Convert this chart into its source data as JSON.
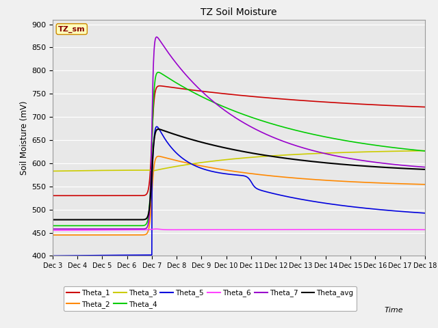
{
  "title": "TZ Soil Moisture",
  "ylabel": "Soil Moisture (mV)",
  "ylim": [
    400,
    910
  ],
  "yticks": [
    400,
    450,
    500,
    550,
    600,
    650,
    700,
    750,
    800,
    850,
    900
  ],
  "box_label": "TZ_sm",
  "background_color": "#e8e8e8",
  "fig_facecolor": "#f0f0f0",
  "series": {
    "Theta_1": {
      "color": "#cc0000",
      "lw": 1.2
    },
    "Theta_2": {
      "color": "#ff8800",
      "lw": 1.2
    },
    "Theta_3": {
      "color": "#cccc00",
      "lw": 1.2
    },
    "Theta_4": {
      "color": "#00cc00",
      "lw": 1.2
    },
    "Theta_5": {
      "color": "#0000dd",
      "lw": 1.2
    },
    "Theta_6": {
      "color": "#ff44ff",
      "lw": 1.2
    },
    "Theta_7": {
      "color": "#9900cc",
      "lw": 1.2
    },
    "Theta_avg": {
      "color": "#000000",
      "lw": 1.5
    }
  },
  "x_tick_labels": [
    "Dec 3",
    "Dec 4",
    "Dec 5",
    "Dec 6",
    "Dec 7",
    "Dec 8",
    "Dec 9",
    "Dec 10",
    "Dec 11",
    "Dec 12",
    "Dec 13",
    "Dec 14",
    "Dec 15",
    "Dec 16",
    "Dec 17",
    "Dec 18"
  ],
  "legend_row1": [
    [
      "Theta_1",
      "#cc0000"
    ],
    [
      "Theta_2",
      "#ff8800"
    ],
    [
      "Theta_3",
      "#cccc00"
    ],
    [
      "Theta_4",
      "#00cc00"
    ],
    [
      "Theta_5",
      "#0000dd"
    ],
    [
      "Theta_6",
      "#ff44ff"
    ]
  ],
  "legend_row2": [
    [
      "Theta_7",
      "#9900cc"
    ],
    [
      "Theta_avg",
      "#000000"
    ]
  ]
}
